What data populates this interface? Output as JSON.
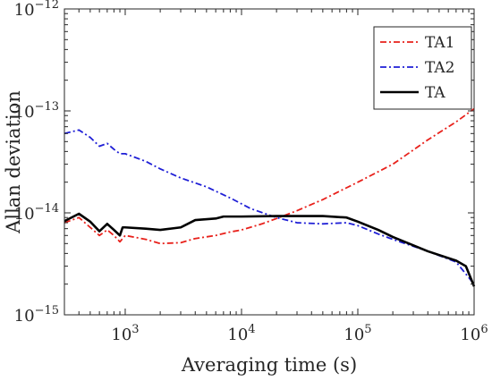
{
  "chart_data": {
    "type": "line",
    "xlabel": "Averaging time (s)",
    "ylabel": "Allan deviation",
    "xscale": "log",
    "yscale": "log",
    "xlim": [
      300,
      1000000
    ],
    "ylim": [
      1e-15,
      1e-12
    ],
    "grid": false,
    "legend_position": "top-right",
    "x_ticks": [
      {
        "value": 1000,
        "base": "10",
        "exp": "3"
      },
      {
        "value": 10000,
        "base": "10",
        "exp": "4"
      },
      {
        "value": 100000,
        "base": "10",
        "exp": "5"
      },
      {
        "value": 1000000,
        "base": "10",
        "exp": "6"
      }
    ],
    "y_ticks": [
      {
        "value": 1e-15,
        "base": "10",
        "exp": "−15"
      },
      {
        "value": 1e-14,
        "base": "10",
        "exp": "−14"
      },
      {
        "value": 1e-13,
        "base": "10",
        "exp": "−13"
      },
      {
        "value": 1e-12,
        "base": "10",
        "exp": "−12"
      }
    ],
    "series": [
      {
        "name": "TA1",
        "color": "#e8211b",
        "dash": "dash-dot",
        "points": [
          [
            300,
            8e-15
          ],
          [
            400,
            9e-15
          ],
          [
            500,
            7.2e-15
          ],
          [
            600,
            6e-15
          ],
          [
            700,
            6.8e-15
          ],
          [
            800,
            6e-15
          ],
          [
            900,
            5.2e-15
          ],
          [
            1000,
            6e-15
          ],
          [
            1500,
            5.5e-15
          ],
          [
            2000,
            5e-15
          ],
          [
            3000,
            5.1e-15
          ],
          [
            4000,
            5.6e-15
          ],
          [
            6000,
            6e-15
          ],
          [
            8000,
            6.5e-15
          ],
          [
            10000,
            6.8e-15
          ],
          [
            15000,
            7.8e-15
          ],
          [
            20000,
            8.8e-15
          ],
          [
            30000,
            1.05e-14
          ],
          [
            50000,
            1.35e-14
          ],
          [
            100000,
            2e-14
          ],
          [
            200000,
            3e-14
          ],
          [
            400000,
            5.2e-14
          ],
          [
            700000,
            7.8e-14
          ],
          [
            1000000,
            1.05e-13
          ]
        ]
      },
      {
        "name": "TA2",
        "color": "#1f1fd6",
        "dash": "dash-dot",
        "points": [
          [
            300,
            6e-14
          ],
          [
            400,
            6.5e-14
          ],
          [
            500,
            5.5e-14
          ],
          [
            600,
            4.5e-14
          ],
          [
            700,
            4.8e-14
          ],
          [
            800,
            4.2e-14
          ],
          [
            900,
            3.8e-14
          ],
          [
            1000,
            3.8e-14
          ],
          [
            1500,
            3.2e-14
          ],
          [
            2000,
            2.7e-14
          ],
          [
            3000,
            2.2e-14
          ],
          [
            5000,
            1.8e-14
          ],
          [
            8000,
            1.4e-14
          ],
          [
            12000,
            1.1e-14
          ],
          [
            20000,
            9e-15
          ],
          [
            30000,
            8e-15
          ],
          [
            50000,
            7.8e-15
          ],
          [
            80000,
            8e-15
          ],
          [
            100000,
            7.5e-15
          ],
          [
            150000,
            6.2e-15
          ],
          [
            200000,
            5.5e-15
          ],
          [
            400000,
            4.2e-15
          ],
          [
            700000,
            3.3e-15
          ],
          [
            1000000,
            2e-15
          ]
        ]
      },
      {
        "name": "TA",
        "color": "#000000",
        "dash": "solid",
        "points": [
          [
            300,
            8.3e-15
          ],
          [
            400,
            9.8e-15
          ],
          [
            500,
            8.2e-15
          ],
          [
            600,
            6.6e-15
          ],
          [
            700,
            7.8e-15
          ],
          [
            800,
            6.8e-15
          ],
          [
            900,
            6e-15
          ],
          [
            950,
            7.2e-15
          ],
          [
            1000,
            7.2e-15
          ],
          [
            1500,
            7e-15
          ],
          [
            2000,
            6.8e-15
          ],
          [
            3000,
            7.2e-15
          ],
          [
            4000,
            8.5e-15
          ],
          [
            6000,
            8.8e-15
          ],
          [
            7000,
            9.2e-15
          ],
          [
            10000,
            9.2e-15
          ],
          [
            20000,
            9.3e-15
          ],
          [
            50000,
            9.3e-15
          ],
          [
            80000,
            9e-15
          ],
          [
            100000,
            8.2e-15
          ],
          [
            150000,
            6.8e-15
          ],
          [
            200000,
            5.8e-15
          ],
          [
            400000,
            4.2e-15
          ],
          [
            700000,
            3.4e-15
          ],
          [
            850000,
            3e-15
          ],
          [
            1000000,
            1.9e-15
          ]
        ]
      }
    ]
  }
}
